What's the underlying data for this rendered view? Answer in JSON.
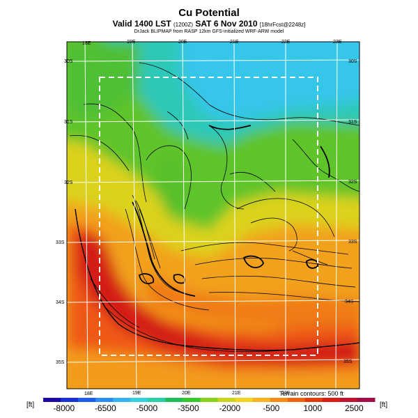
{
  "header": {
    "title": "Cu Potential",
    "valid_prefix": "Valid 1400 LST",
    "valid_utc": "(1200Z)",
    "valid_date": "SAT 6 Nov 2010",
    "forecast": "[18hrFcst@2248z]",
    "credit": "DrJack BLIPMAP from RASP 12km GFS-initialized WRF-ARW model"
  },
  "map": {
    "lon_labels_top": [
      "18E",
      "19E",
      "20E",
      "21E",
      "22E",
      "23E"
    ],
    "lon_labels_bottom": [
      "18E",
      "19E",
      "20E",
      "21E",
      "22E"
    ],
    "lat_labels_left": [
      "30S",
      "31S",
      "32S",
      "33S",
      "34S",
      "35S"
    ],
    "lat_labels_right": [
      "30S",
      "31S",
      "32S",
      "33S",
      "34S",
      "35S"
    ],
    "terrain_note": "Terrain contours: 500 ft"
  },
  "colorbar": {
    "unit_left": "[ft]",
    "unit_right": "[ft]",
    "tick_labels": [
      "-8000",
      "-6500",
      "-5000",
      "-3500",
      "-2000",
      "-500",
      "1000",
      "2500"
    ],
    "colors": [
      "#1a0aa8",
      "#1632d8",
      "#1c5ff0",
      "#2a8cf4",
      "#35b2f2",
      "#31d2e0",
      "#27d0a6",
      "#1fbd5a",
      "#34c82a",
      "#84d21c",
      "#c8d51a",
      "#f2d41e",
      "#f7b21c",
      "#f78c14",
      "#f0620e",
      "#e63a0b",
      "#d81c14",
      "#c0142a",
      "#a30e46"
    ]
  }
}
